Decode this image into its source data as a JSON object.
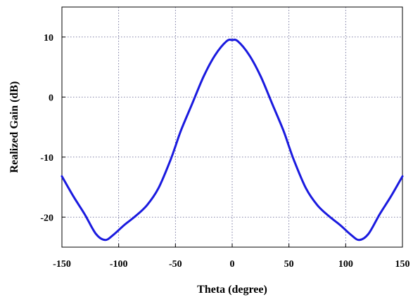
{
  "chart_data": {
    "type": "line",
    "xlabel": "Theta (degree)",
    "ylabel": "Realized Gain (dB)",
    "xlim": [
      -150,
      150
    ],
    "ylim": [
      -25,
      15
    ],
    "xticks": [
      -150,
      -100,
      -50,
      0,
      50,
      100,
      150
    ],
    "yticks": [
      -20,
      -10,
      0,
      10
    ],
    "xtick_labels": [
      "-150",
      "-100",
      "-50",
      "0",
      "50",
      "100",
      "150"
    ],
    "ytick_labels": [
      "-20",
      "-10",
      "0",
      "10"
    ],
    "grid": true,
    "line_color": "#1a1adf",
    "series": [
      {
        "x": [
          -150,
          -140,
          -130,
          -120,
          -112,
          -105,
          -95,
          -85,
          -75,
          -65,
          -55,
          -50,
          -45,
          -35,
          -25,
          -15,
          -5,
          0,
          5,
          15,
          25,
          35,
          45,
          50,
          55,
          65,
          75,
          85,
          95,
          105,
          112,
          120,
          130,
          140,
          150
        ],
        "values": [
          -13.2,
          -16.5,
          -19.5,
          -22.8,
          -23.8,
          -23.0,
          -21.3,
          -19.8,
          -18.0,
          -15.2,
          -10.8,
          -8.2,
          -5.5,
          -1.0,
          3.5,
          7.0,
          9.3,
          9.5,
          9.3,
          7.0,
          3.5,
          -1.0,
          -5.5,
          -8.2,
          -10.8,
          -15.2,
          -18.0,
          -19.8,
          -21.3,
          -23.0,
          -23.8,
          -22.8,
          -19.5,
          -16.5,
          -13.2
        ]
      }
    ]
  }
}
